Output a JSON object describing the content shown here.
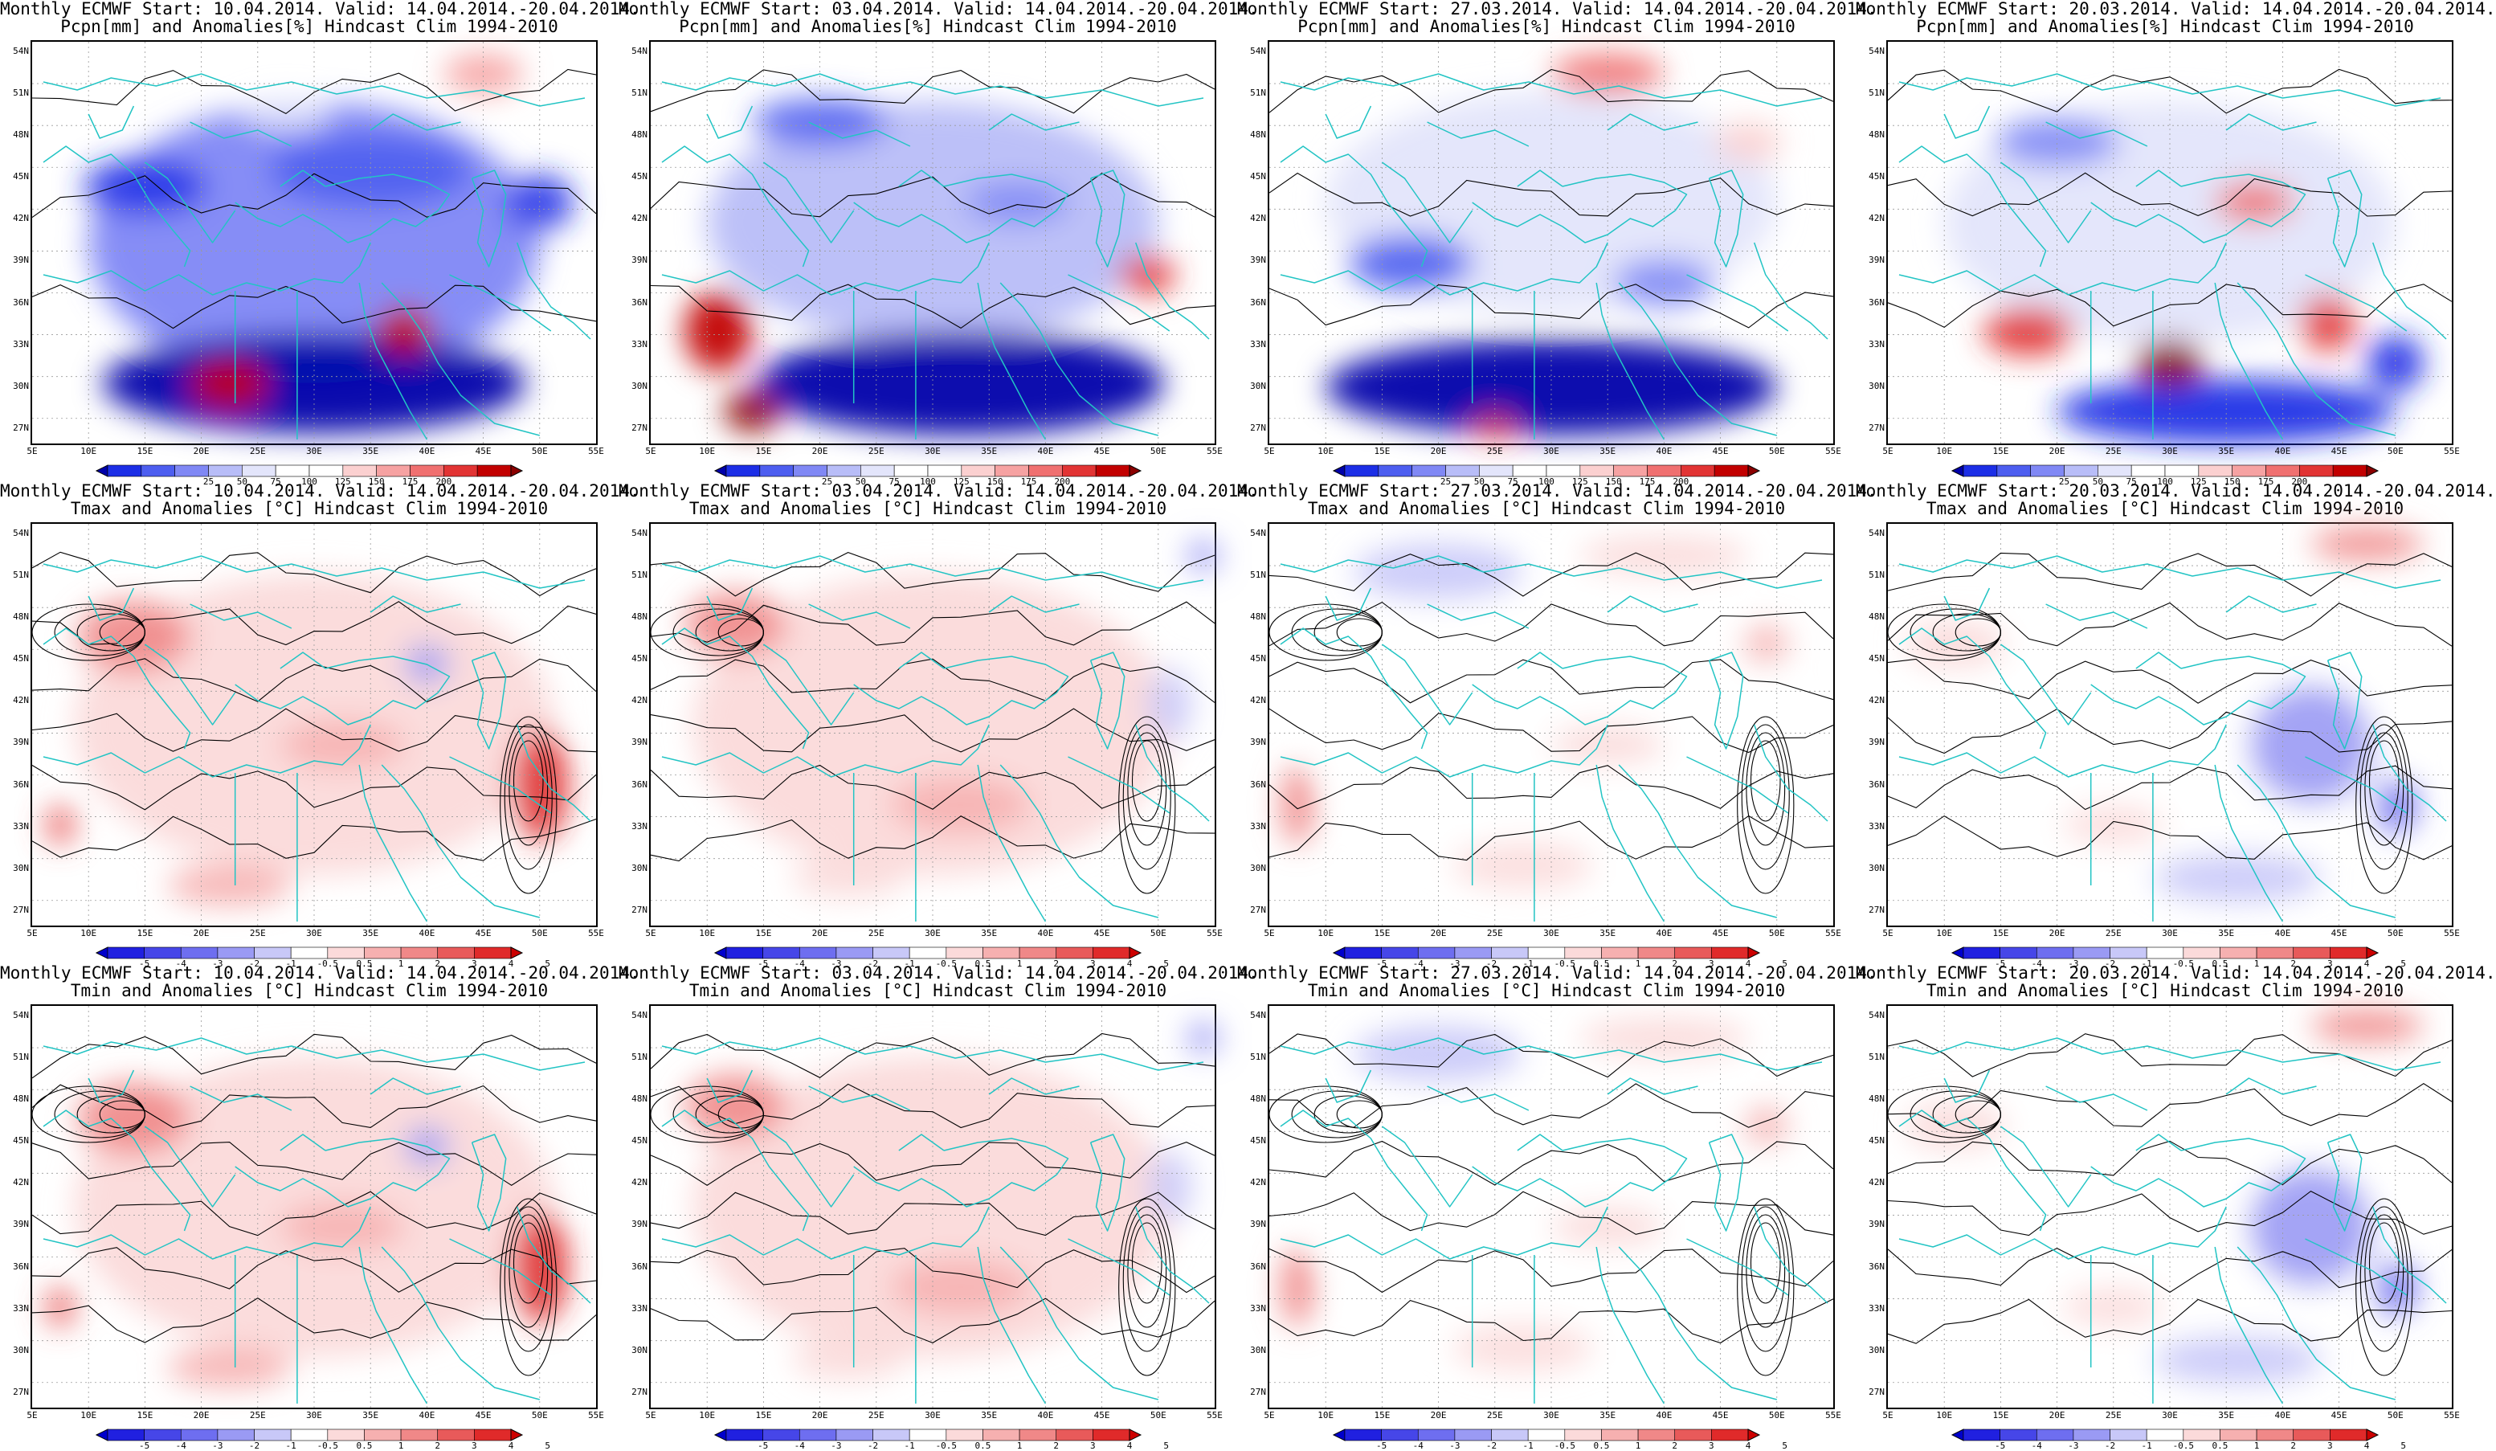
{
  "panels": [
    {
      "title_line1": "Monthly ECMWF Start: 10.04.2014. Valid: 14.04.2014.-20.04.2014.",
      "title_line2": "Pcpn[mm] and Anomalies[%] Hindcast Clim 1994-2010",
      "variable": "precipitation",
      "scheme": "precip",
      "start_date": "10.04.2014"
    },
    {
      "title_line1": "Monthly ECMWF Start: 03.04.2014. Valid: 14.04.2014.-20.04.2014.",
      "title_line2": "Pcpn[mm] and Anomalies[%] Hindcast Clim 1994-2010",
      "variable": "precipitation",
      "scheme": "precip",
      "start_date": "03.04.2014"
    },
    {
      "title_line1": "Monthly ECMWF Start: 27.03.2014. Valid: 14.04.2014.-20.04.2014.",
      "title_line2": "Pcpn[mm] and Anomalies[%] Hindcast Clim 1994-2010",
      "variable": "precipitation",
      "scheme": "precip",
      "start_date": "27.03.2014"
    },
    {
      "title_line1": "Monthly ECMWF Start: 20.03.2014. Valid: 14.04.2014.-20.04.2014.",
      "title_line2": "Pcpn[mm] and Anomalies[%] Hindcast Clim 1994-2010",
      "variable": "precipitation",
      "scheme": "precip",
      "start_date": "20.03.2014"
    },
    {
      "title_line1": "Monthly ECMWF Start: 10.04.2014. Valid: 14.04.2014.-20.04.2014.",
      "title_line2": "Tmax and Anomalies [°C] Hindcast Clim 1994-2010",
      "variable": "tmax",
      "scheme": "warm",
      "start_date": "10.04.2014"
    },
    {
      "title_line1": "Monthly ECMWF Start: 03.04.2014. Valid: 14.04.2014.-20.04.2014.",
      "title_line2": "Tmax and Anomalies [°C] Hindcast Clim 1994-2010",
      "variable": "tmax",
      "scheme": "warm-light",
      "start_date": "03.04.2014"
    },
    {
      "title_line1": "Monthly ECMWF Start: 27.03.2014. Valid: 14.04.2014.-20.04.2014.",
      "title_line2": "Tmax and Anomalies [°C] Hindcast Clim 1994-2010",
      "variable": "tmax",
      "scheme": "mixed",
      "start_date": "27.03.2014"
    },
    {
      "title_line1": "Monthly ECMWF Start: 20.03.2014. Valid: 14.04.2014.-20.04.2014.",
      "title_line2": "Tmax and Anomalies [°C] Hindcast Clim 1994-2010",
      "variable": "tmax",
      "scheme": "cool-east",
      "start_date": "20.03.2014"
    },
    {
      "title_line1": "Monthly ECMWF Start: 10.04.2014. Valid: 14.04.2014.-20.04.2014.",
      "title_line2": "Tmin and Anomalies [°C] Hindcast Clim 1994-2010",
      "variable": "tmin",
      "scheme": "warm",
      "start_date": "10.04.2014"
    },
    {
      "title_line1": "Monthly ECMWF Start: 03.04.2014. Valid: 14.04.2014.-20.04.2014.",
      "title_line2": "Tmin and Anomalies [°C] Hindcast Clim 1994-2010",
      "variable": "tmin",
      "scheme": "warm-light",
      "start_date": "03.04.2014"
    },
    {
      "title_line1": "Monthly ECMWF Start: 27.03.2014. Valid: 14.04.2014.-20.04.2014.",
      "title_line2": "Tmin and Anomalies [°C] Hindcast Clim 1994-2010",
      "variable": "tmin",
      "scheme": "mixed",
      "start_date": "27.03.2014"
    },
    {
      "title_line1": "Monthly ECMWF Start: 20.03.2014. Valid: 14.04.2014.-20.04.2014.",
      "title_line2": "Tmin and Anomalies [°C] Hindcast Clim 1994-2010",
      "variable": "tmin",
      "scheme": "cool-east",
      "start_date": "20.03.2014"
    }
  ],
  "lat_labels": [
    "54N",
    "51N",
    "48N",
    "45N",
    "42N",
    "39N",
    "36N",
    "33N",
    "30N",
    "27N"
  ],
  "lon_labels": [
    "5E",
    "10E",
    "15E",
    "20E",
    "25E",
    "30E",
    "35E",
    "40E",
    "45E",
    "50E",
    "55E"
  ],
  "precip_colorbar": {
    "labels": [
      "25",
      "50",
      "75",
      "100",
      "125",
      "150",
      "175",
      "200"
    ],
    "colors": [
      "#0000aa",
      "#1c2ee6",
      "#4d5ef0",
      "#8088f5",
      "#b8bdf8",
      "#e3e5fb",
      "#ffffff",
      "#ffffff",
      "#fbd0d0",
      "#f6a2a2",
      "#f07070",
      "#e23434",
      "#c20000",
      "#8b0000"
    ]
  },
  "temp_colorbar": {
    "labels": [
      "-5",
      "-4",
      "-3",
      "-2",
      "-1",
      "-0.5",
      "0.5",
      "1",
      "2",
      "3",
      "4",
      "5"
    ],
    "colors": [
      "#0000cc",
      "#2020e0",
      "#4646e8",
      "#6e6ef0",
      "#9a9af4",
      "#c8c8f8",
      "#ffffff",
      "#fbdada",
      "#f6b0b0",
      "#f08888",
      "#e85a5a",
      "#e02a2a",
      "#cc0000"
    ]
  },
  "colors": {
    "coast": "#22c4c4",
    "contour": "#000000",
    "grid": "#9a9a9a"
  }
}
